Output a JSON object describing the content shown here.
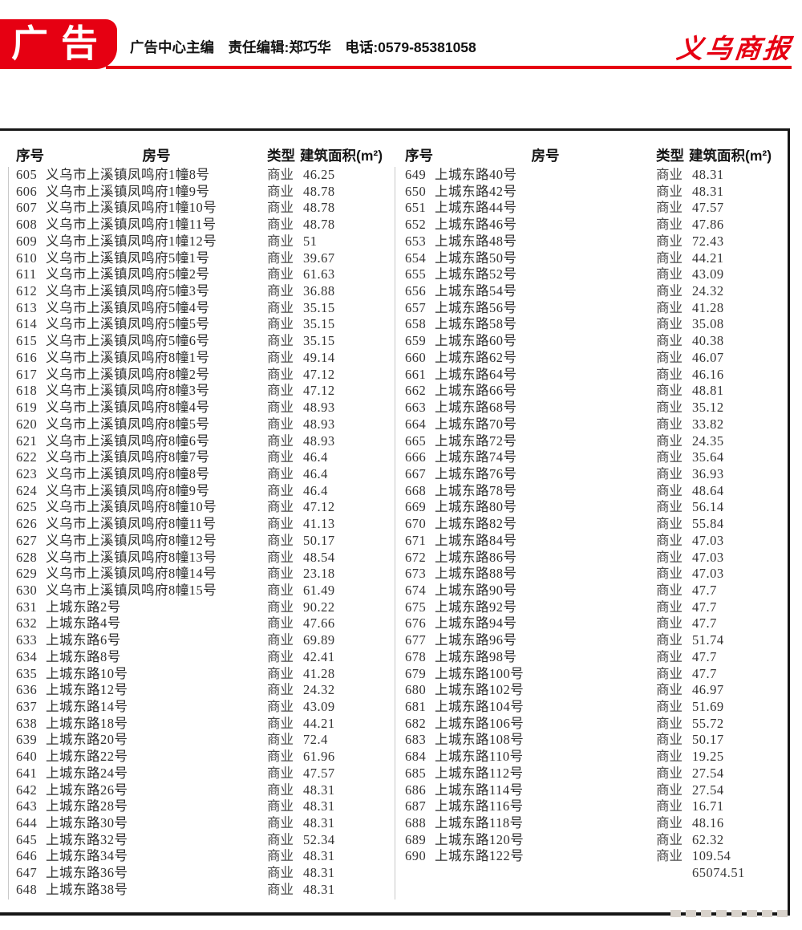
{
  "masthead": {
    "badge_label": "广告",
    "editor_line": "广告中心主编　责任编辑:郑巧华　电话:0579-85381058",
    "brand": "义乌商报",
    "accent_color": "#e60012"
  },
  "table": {
    "headers": {
      "seq": "序号",
      "room": "房号",
      "type": "类型",
      "area": "建筑面积(m²)"
    },
    "total_area": "65074.51",
    "left_rows": [
      {
        "no": "605",
        "addr": "义乌市上溪镇凤鸣府1幢8号",
        "type": "商业",
        "area": "46.25"
      },
      {
        "no": "606",
        "addr": "义乌市上溪镇凤鸣府1幢9号",
        "type": "商业",
        "area": "48.78"
      },
      {
        "no": "607",
        "addr": "义乌市上溪镇凤鸣府1幢10号",
        "type": "商业",
        "area": "48.78"
      },
      {
        "no": "608",
        "addr": "义乌市上溪镇凤鸣府1幢11号",
        "type": "商业",
        "area": "48.78"
      },
      {
        "no": "609",
        "addr": "义乌市上溪镇凤鸣府1幢12号",
        "type": "商业",
        "area": "51"
      },
      {
        "no": "610",
        "addr": "义乌市上溪镇凤鸣府5幢1号",
        "type": "商业",
        "area": "39.67"
      },
      {
        "no": "611",
        "addr": "义乌市上溪镇凤鸣府5幢2号",
        "type": "商业",
        "area": "61.63"
      },
      {
        "no": "612",
        "addr": "义乌市上溪镇凤鸣府5幢3号",
        "type": "商业",
        "area": "36.88"
      },
      {
        "no": "613",
        "addr": "义乌市上溪镇凤鸣府5幢4号",
        "type": "商业",
        "area": "35.15"
      },
      {
        "no": "614",
        "addr": "义乌市上溪镇凤鸣府5幢5号",
        "type": "商业",
        "area": "35.15"
      },
      {
        "no": "615",
        "addr": "义乌市上溪镇凤鸣府5幢6号",
        "type": "商业",
        "area": "35.15"
      },
      {
        "no": "616",
        "addr": "义乌市上溪镇凤鸣府8幢1号",
        "type": "商业",
        "area": "49.14"
      },
      {
        "no": "617",
        "addr": "义乌市上溪镇凤鸣府8幢2号",
        "type": "商业",
        "area": "47.12"
      },
      {
        "no": "618",
        "addr": "义乌市上溪镇凤鸣府8幢3号",
        "type": "商业",
        "area": "47.12"
      },
      {
        "no": "619",
        "addr": "义乌市上溪镇凤鸣府8幢4号",
        "type": "商业",
        "area": "48.93"
      },
      {
        "no": "620",
        "addr": "义乌市上溪镇凤鸣府8幢5号",
        "type": "商业",
        "area": "48.93"
      },
      {
        "no": "621",
        "addr": "义乌市上溪镇凤鸣府8幢6号",
        "type": "商业",
        "area": "48.93"
      },
      {
        "no": "622",
        "addr": "义乌市上溪镇凤鸣府8幢7号",
        "type": "商业",
        "area": "46.4"
      },
      {
        "no": "623",
        "addr": "义乌市上溪镇凤鸣府8幢8号",
        "type": "商业",
        "area": "46.4"
      },
      {
        "no": "624",
        "addr": "义乌市上溪镇凤鸣府8幢9号",
        "type": "商业",
        "area": "46.4"
      },
      {
        "no": "625",
        "addr": "义乌市上溪镇凤鸣府8幢10号",
        "type": "商业",
        "area": "47.12"
      },
      {
        "no": "626",
        "addr": "义乌市上溪镇凤鸣府8幢11号",
        "type": "商业",
        "area": "41.13"
      },
      {
        "no": "627",
        "addr": "义乌市上溪镇凤鸣府8幢12号",
        "type": "商业",
        "area": "50.17"
      },
      {
        "no": "628",
        "addr": "义乌市上溪镇凤鸣府8幢13号",
        "type": "商业",
        "area": "48.54"
      },
      {
        "no": "629",
        "addr": "义乌市上溪镇凤鸣府8幢14号",
        "type": "商业",
        "area": "23.18"
      },
      {
        "no": "630",
        "addr": "义乌市上溪镇凤鸣府8幢15号",
        "type": "商业",
        "area": "61.49"
      },
      {
        "no": "631",
        "addr": "上城东路2号",
        "type": "商业",
        "area": "90.22"
      },
      {
        "no": "632",
        "addr": "上城东路4号",
        "type": "商业",
        "area": "47.66"
      },
      {
        "no": "633",
        "addr": "上城东路6号",
        "type": "商业",
        "area": "69.89"
      },
      {
        "no": "634",
        "addr": "上城东路8号",
        "type": "商业",
        "area": "42.41"
      },
      {
        "no": "635",
        "addr": "上城东路10号",
        "type": "商业",
        "area": "41.28"
      },
      {
        "no": "636",
        "addr": "上城东路12号",
        "type": "商业",
        "area": "24.32"
      },
      {
        "no": "637",
        "addr": "上城东路14号",
        "type": "商业",
        "area": "43.09"
      },
      {
        "no": "638",
        "addr": "上城东路18号",
        "type": "商业",
        "area": "44.21"
      },
      {
        "no": "639",
        "addr": "上城东路20号",
        "type": "商业",
        "area": "72.4"
      },
      {
        "no": "640",
        "addr": "上城东路22号",
        "type": "商业",
        "area": "61.96"
      },
      {
        "no": "641",
        "addr": "上城东路24号",
        "type": "商业",
        "area": "47.57"
      },
      {
        "no": "642",
        "addr": "上城东路26号",
        "type": "商业",
        "area": "48.31"
      },
      {
        "no": "643",
        "addr": "上城东路28号",
        "type": "商业",
        "area": "48.31"
      },
      {
        "no": "644",
        "addr": "上城东路30号",
        "type": "商业",
        "area": "48.31"
      },
      {
        "no": "645",
        "addr": "上城东路32号",
        "type": "商业",
        "area": "52.34"
      },
      {
        "no": "646",
        "addr": "上城东路34号",
        "type": "商业",
        "area": "48.31"
      },
      {
        "no": "647",
        "addr": "上城东路36号",
        "type": "商业",
        "area": "48.31"
      },
      {
        "no": "648",
        "addr": "上城东路38号",
        "type": "商业",
        "area": "48.31"
      }
    ],
    "right_rows": [
      {
        "no": "649",
        "addr": "上城东路40号",
        "type": "商业",
        "area": "48.31"
      },
      {
        "no": "650",
        "addr": "上城东路42号",
        "type": "商业",
        "area": "48.31"
      },
      {
        "no": "651",
        "addr": "上城东路44号",
        "type": "商业",
        "area": "47.57"
      },
      {
        "no": "652",
        "addr": "上城东路46号",
        "type": "商业",
        "area": "47.86"
      },
      {
        "no": "653",
        "addr": "上城东路48号",
        "type": "商业",
        "area": "72.43"
      },
      {
        "no": "654",
        "addr": "上城东路50号",
        "type": "商业",
        "area": "44.21"
      },
      {
        "no": "655",
        "addr": "上城东路52号",
        "type": "商业",
        "area": "43.09"
      },
      {
        "no": "656",
        "addr": "上城东路54号",
        "type": "商业",
        "area": "24.32"
      },
      {
        "no": "657",
        "addr": "上城东路56号",
        "type": "商业",
        "area": "41.28"
      },
      {
        "no": "658",
        "addr": "上城东路58号",
        "type": "商业",
        "area": "35.08"
      },
      {
        "no": "659",
        "addr": "上城东路60号",
        "type": "商业",
        "area": "40.38"
      },
      {
        "no": "660",
        "addr": "上城东路62号",
        "type": "商业",
        "area": "46.07"
      },
      {
        "no": "661",
        "addr": "上城东路64号",
        "type": "商业",
        "area": "46.16"
      },
      {
        "no": "662",
        "addr": "上城东路66号",
        "type": "商业",
        "area": "48.81"
      },
      {
        "no": "663",
        "addr": "上城东路68号",
        "type": "商业",
        "area": "35.12"
      },
      {
        "no": "664",
        "addr": "上城东路70号",
        "type": "商业",
        "area": "33.82"
      },
      {
        "no": "665",
        "addr": "上城东路72号",
        "type": "商业",
        "area": "24.35"
      },
      {
        "no": "666",
        "addr": "上城东路74号",
        "type": "商业",
        "area": "35.64"
      },
      {
        "no": "667",
        "addr": "上城东路76号",
        "type": "商业",
        "area": "36.93"
      },
      {
        "no": "668",
        "addr": "上城东路78号",
        "type": "商业",
        "area": "48.64"
      },
      {
        "no": "669",
        "addr": "上城东路80号",
        "type": "商业",
        "area": "56.14"
      },
      {
        "no": "670",
        "addr": "上城东路82号",
        "type": "商业",
        "area": "55.84"
      },
      {
        "no": "671",
        "addr": "上城东路84号",
        "type": "商业",
        "area": "47.03"
      },
      {
        "no": "672",
        "addr": "上城东路86号",
        "type": "商业",
        "area": "47.03"
      },
      {
        "no": "673",
        "addr": "上城东路88号",
        "type": "商业",
        "area": "47.03"
      },
      {
        "no": "674",
        "addr": "上城东路90号",
        "type": "商业",
        "area": "47.7"
      },
      {
        "no": "675",
        "addr": "上城东路92号",
        "type": "商业",
        "area": "47.7"
      },
      {
        "no": "676",
        "addr": "上城东路94号",
        "type": "商业",
        "area": "47.7"
      },
      {
        "no": "677",
        "addr": "上城东路96号",
        "type": "商业",
        "area": "51.74"
      },
      {
        "no": "678",
        "addr": "上城东路98号",
        "type": "商业",
        "area": "47.7"
      },
      {
        "no": "679",
        "addr": "上城东路100号",
        "type": "商业",
        "area": "47.7"
      },
      {
        "no": "680",
        "addr": "上城东路102号",
        "type": "商业",
        "area": "46.97"
      },
      {
        "no": "681",
        "addr": "上城东路104号",
        "type": "商业",
        "area": "51.69"
      },
      {
        "no": "682",
        "addr": "上城东路106号",
        "type": "商业",
        "area": "55.72"
      },
      {
        "no": "683",
        "addr": "上城东路108号",
        "type": "商业",
        "area": "50.17"
      },
      {
        "no": "684",
        "addr": "上城东路110号",
        "type": "商业",
        "area": "19.25"
      },
      {
        "no": "685",
        "addr": "上城东路112号",
        "type": "商业",
        "area": "27.54"
      },
      {
        "no": "686",
        "addr": "上城东路114号",
        "type": "商业",
        "area": "27.54"
      },
      {
        "no": "687",
        "addr": "上城东路116号",
        "type": "商业",
        "area": "16.71"
      },
      {
        "no": "688",
        "addr": "上城东路118号",
        "type": "商业",
        "area": "48.16"
      },
      {
        "no": "689",
        "addr": "上城东路120号",
        "type": "商业",
        "area": "62.32"
      },
      {
        "no": "690",
        "addr": "上城东路122号",
        "type": "商业",
        "area": "109.54"
      }
    ]
  }
}
